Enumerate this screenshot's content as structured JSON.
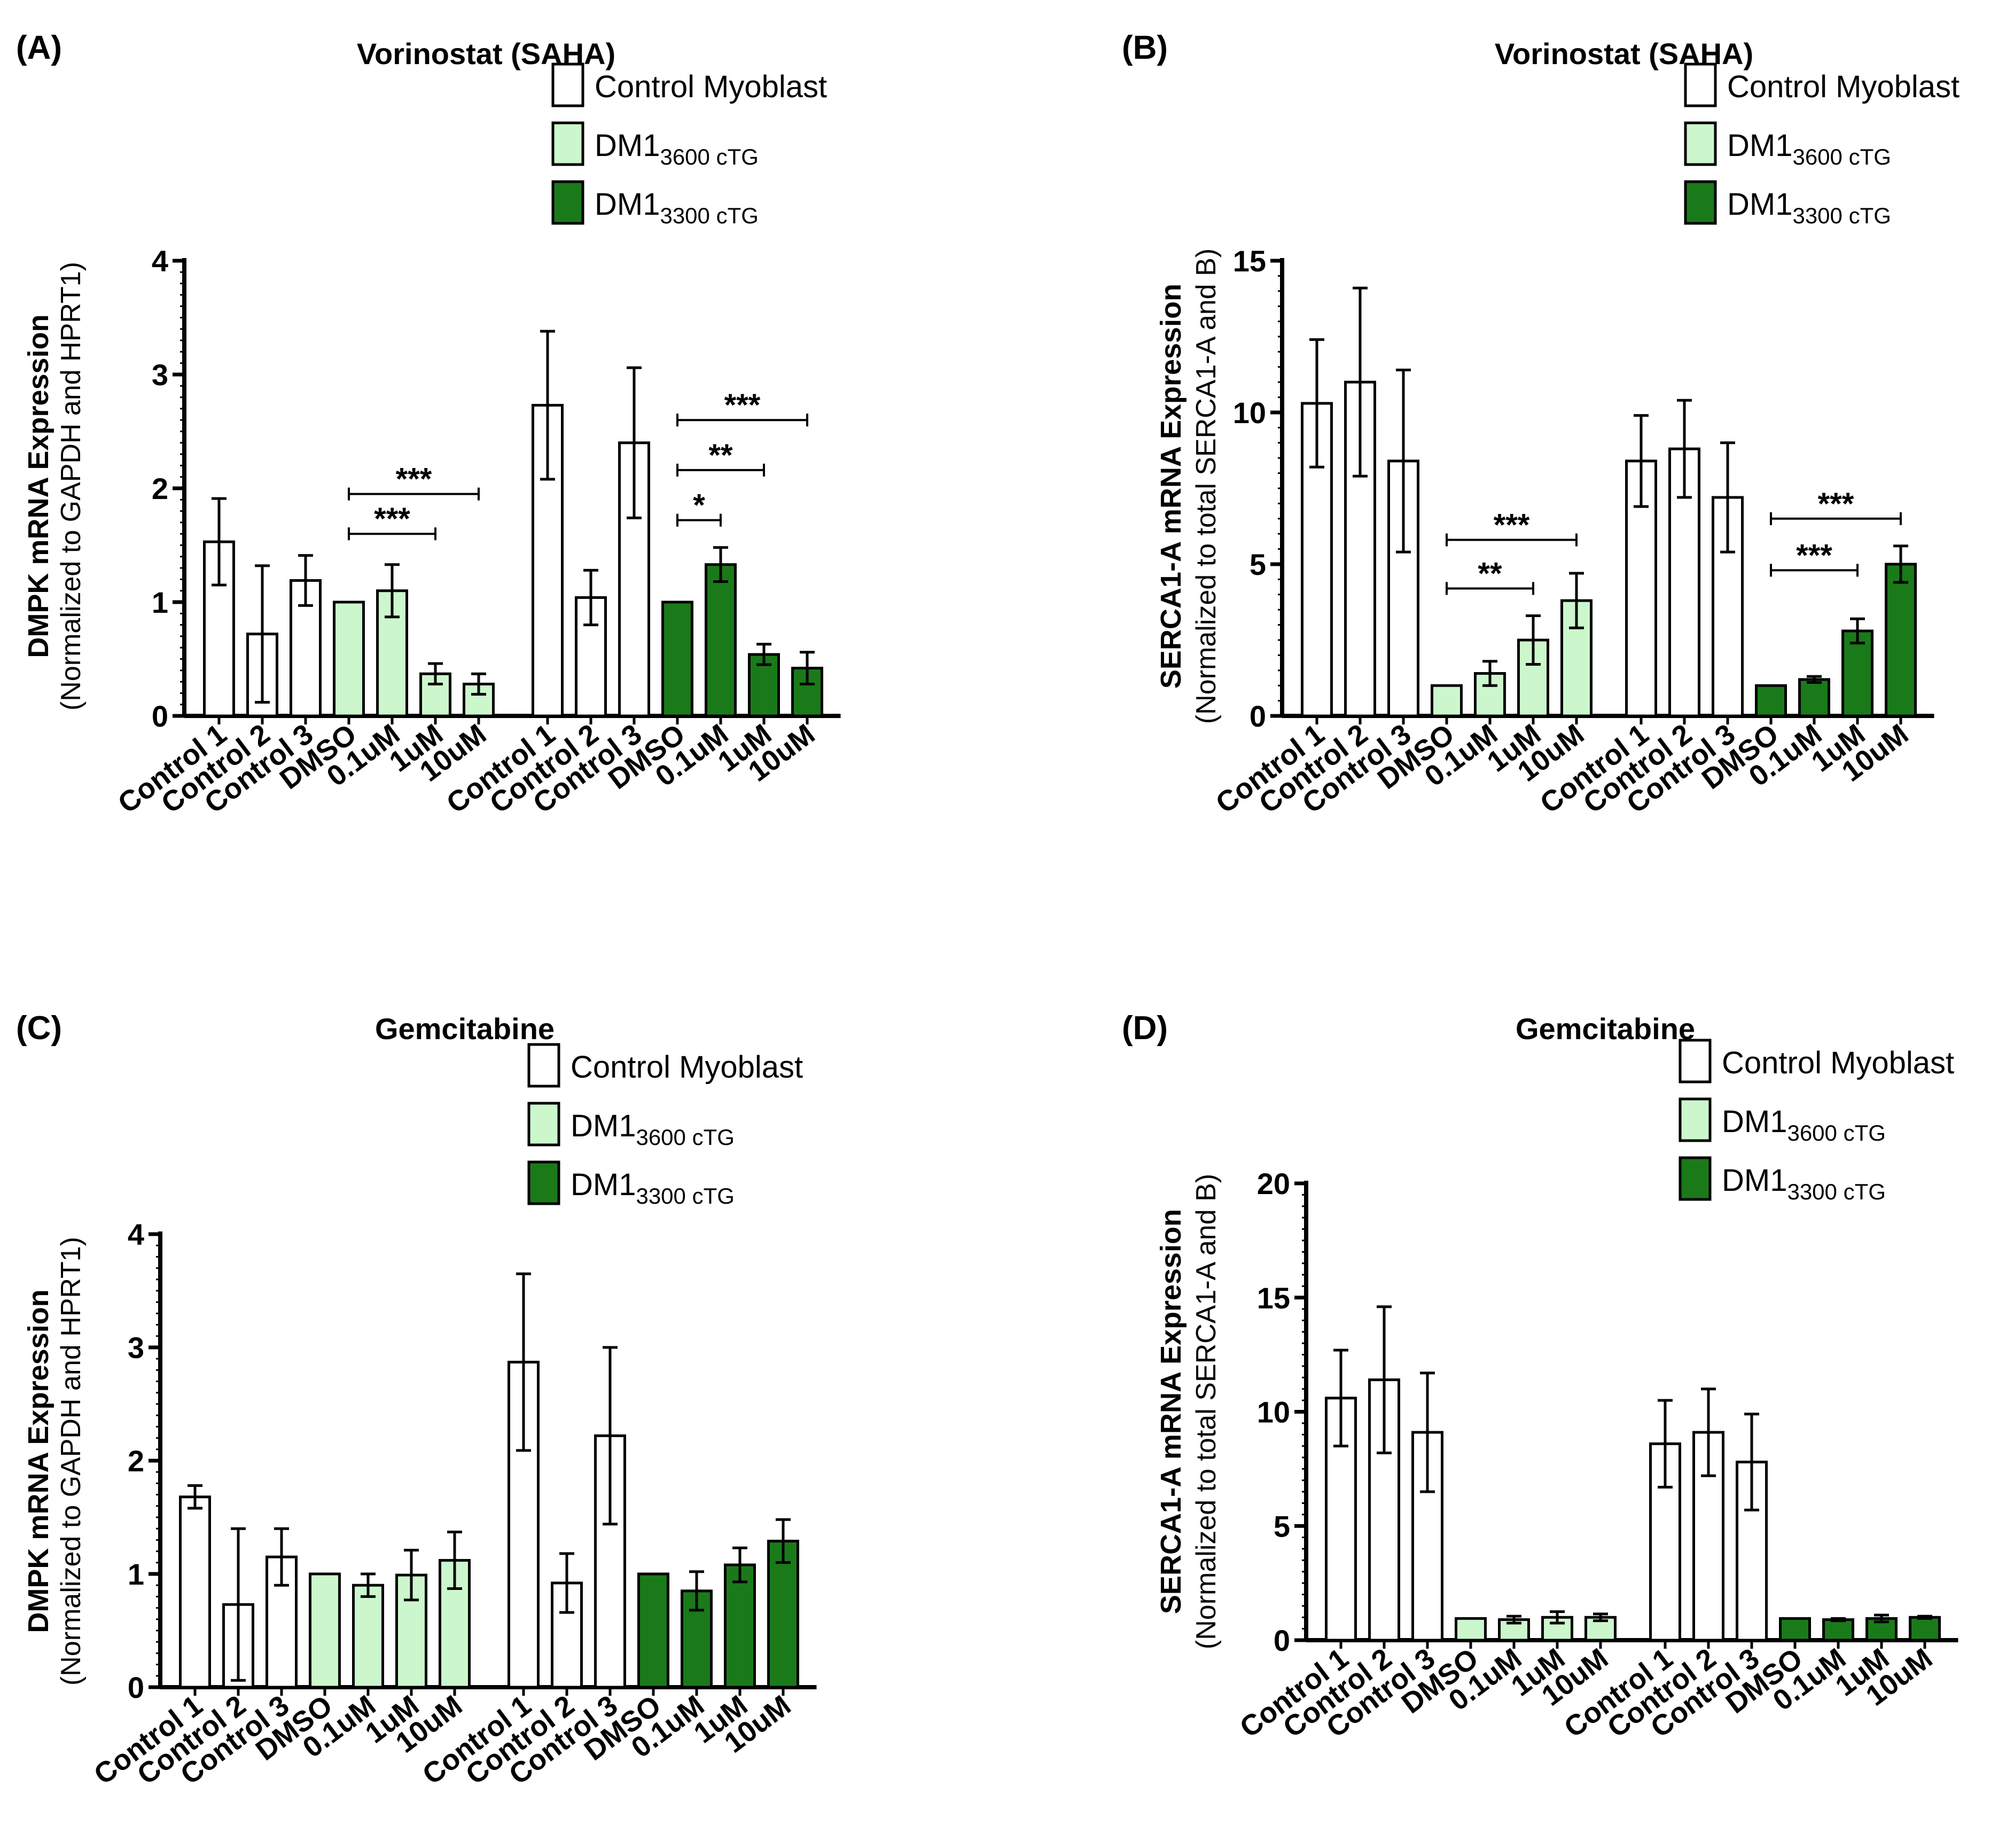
{
  "colors": {
    "control": "#ffffff",
    "dm1_3600": "#ccf7cc",
    "dm1_3300": "#1a7a1a",
    "stroke": "#000000"
  },
  "legend": {
    "control_label": "Control Myoblast",
    "dm1_prefix": "DM1",
    "dm1_3600_subscript": "3600 cTG",
    "dm1_3300_subscript": "3300 cTG"
  },
  "chart_data": [
    {
      "panel": "(A)",
      "type": "bar",
      "title": "Vorinostat (SAHA)",
      "ylabel": "DMPK mRNA Expression",
      "ylabel2": "(Normalized to GAPDH and  HPRT1)",
      "ylim": [
        0,
        4
      ],
      "yticks": [
        "0",
        "1",
        "2",
        "3",
        "4"
      ],
      "categories": [
        "Control 1",
        "Control 2",
        "Control 3",
        "DMSO",
        "0.1uM",
        "1uM",
        "10uM",
        "Control 1",
        "Control 2",
        "Control 3",
        "DMSO",
        "0.1uM",
        "1uM",
        "10uM"
      ],
      "groups": [
        "control",
        "control",
        "control",
        "dm1_3600",
        "dm1_3600",
        "dm1_3600",
        "dm1_3600",
        "control",
        "control",
        "control",
        "dm1_3300",
        "dm1_3300",
        "dm1_3300",
        "dm1_3300"
      ],
      "values": [
        1.53,
        0.72,
        1.19,
        1.0,
        1.1,
        0.37,
        0.28,
        2.73,
        1.04,
        2.4,
        1.0,
        1.33,
        0.54,
        0.42
      ],
      "errors": [
        0.38,
        0.6,
        0.22,
        0,
        0.23,
        0.09,
        0.09,
        0.65,
        0.24,
        0.66,
        0,
        0.15,
        0.09,
        0.14
      ],
      "significance": [
        {
          "from": 3,
          "to": 5,
          "label": "***",
          "y": 1.6
        },
        {
          "from": 3,
          "to": 6,
          "label": "***",
          "y": 1.95
        },
        {
          "from": 10,
          "to": 11,
          "label": "*",
          "y": 1.72
        },
        {
          "from": 10,
          "to": 12,
          "label": "**",
          "y": 2.16
        },
        {
          "from": 10,
          "to": 13,
          "label": "***",
          "y": 2.6
        }
      ]
    },
    {
      "panel": "(B)",
      "type": "bar",
      "title": "Vorinostat (SAHA)",
      "ylabel": "SERCA1-A mRNA Expression",
      "ylabel2": "(Normalized to total SERCA1-A and B)",
      "ylim": [
        0,
        15
      ],
      "yticks": [
        "0",
        "5",
        "10",
        "15"
      ],
      "categories": [
        "Control 1",
        "Control 2",
        "Control 3",
        "DMSO",
        "0.1uM",
        "1uM",
        "10uM",
        "Control 1",
        "Control 2",
        "Control 3",
        "DMSO",
        "0.1uM",
        "1uM",
        "10uM"
      ],
      "groups": [
        "control",
        "control",
        "control",
        "dm1_3600",
        "dm1_3600",
        "dm1_3600",
        "dm1_3600",
        "control",
        "control",
        "control",
        "dm1_3300",
        "dm1_3300",
        "dm1_3300",
        "dm1_3300"
      ],
      "values": [
        10.3,
        11.0,
        8.4,
        1.0,
        1.4,
        2.5,
        3.8,
        8.4,
        8.8,
        7.2,
        1.0,
        1.2,
        2.8,
        5.0
      ],
      "errors": [
        2.1,
        3.1,
        3.0,
        0,
        0.4,
        0.8,
        0.9,
        1.5,
        1.6,
        1.8,
        0,
        0.1,
        0.4,
        0.6
      ],
      "significance": [
        {
          "from": 3,
          "to": 5,
          "label": "**",
          "y": 4.2
        },
        {
          "from": 3,
          "to": 6,
          "label": "***",
          "y": 5.8
        },
        {
          "from": 10,
          "to": 12,
          "label": "***",
          "y": 4.8
        },
        {
          "from": 10,
          "to": 13,
          "label": "***",
          "y": 6.5
        }
      ]
    },
    {
      "panel": "(C)",
      "type": "bar",
      "title": "Gemcitabine",
      "ylabel": "DMPK mRNA Expression",
      "ylabel2": "(Normalized to GAPDH and  HPRT1)",
      "ylim": [
        0,
        4
      ],
      "yticks": [
        "0",
        "1",
        "2",
        "3",
        "4"
      ],
      "categories": [
        "Control 1",
        "Control 2",
        "Control 3",
        "DMSO",
        "0.1uM",
        "1uM",
        "10uM",
        "Control 1",
        "Control 2",
        "Control 3",
        "DMSO",
        "0.1uM",
        "1uM",
        "10uM"
      ],
      "groups": [
        "control",
        "control",
        "control",
        "dm1_3600",
        "dm1_3600",
        "dm1_3600",
        "dm1_3600",
        "control",
        "control",
        "control",
        "dm1_3300",
        "dm1_3300",
        "dm1_3300",
        "dm1_3300"
      ],
      "values": [
        1.68,
        0.73,
        1.15,
        1.0,
        0.9,
        0.99,
        1.12,
        2.87,
        0.92,
        2.22,
        1.0,
        0.85,
        1.08,
        1.29
      ],
      "errors": [
        0.1,
        0.67,
        0.25,
        0,
        0.1,
        0.22,
        0.25,
        0.78,
        0.26,
        0.78,
        0,
        0.17,
        0.15,
        0.19
      ],
      "significance": []
    },
    {
      "panel": "(D)",
      "type": "bar",
      "title": "Gemcitabine",
      "ylabel": "SERCA1-A mRNA Expression",
      "ylabel2": "(Normalized to total SERCA1-A and B)",
      "ylim": [
        0,
        20
      ],
      "yticks": [
        "0",
        "5",
        "10",
        "15",
        "20"
      ],
      "categories": [
        "Control 1",
        "Control 2",
        "Control 3",
        "DMSO",
        "0.1uM",
        "1uM",
        "10uM",
        "Control 1",
        "Control 2",
        "Control 3",
        "DMSO",
        "0.1uM",
        "1uM",
        "10uM"
      ],
      "groups": [
        "control",
        "control",
        "control",
        "dm1_3600",
        "dm1_3600",
        "dm1_3600",
        "dm1_3600",
        "control",
        "control",
        "control",
        "dm1_3300",
        "dm1_3300",
        "dm1_3300",
        "dm1_3300"
      ],
      "values": [
        10.6,
        11.4,
        9.1,
        0.95,
        0.9,
        1.0,
        1.0,
        8.6,
        9.1,
        7.8,
        0.95,
        0.9,
        0.95,
        1.0
      ],
      "errors": [
        2.1,
        3.2,
        2.6,
        0,
        0.15,
        0.25,
        0.15,
        1.9,
        1.9,
        2.1,
        0,
        0.05,
        0.15,
        0.05
      ],
      "significance": []
    }
  ]
}
